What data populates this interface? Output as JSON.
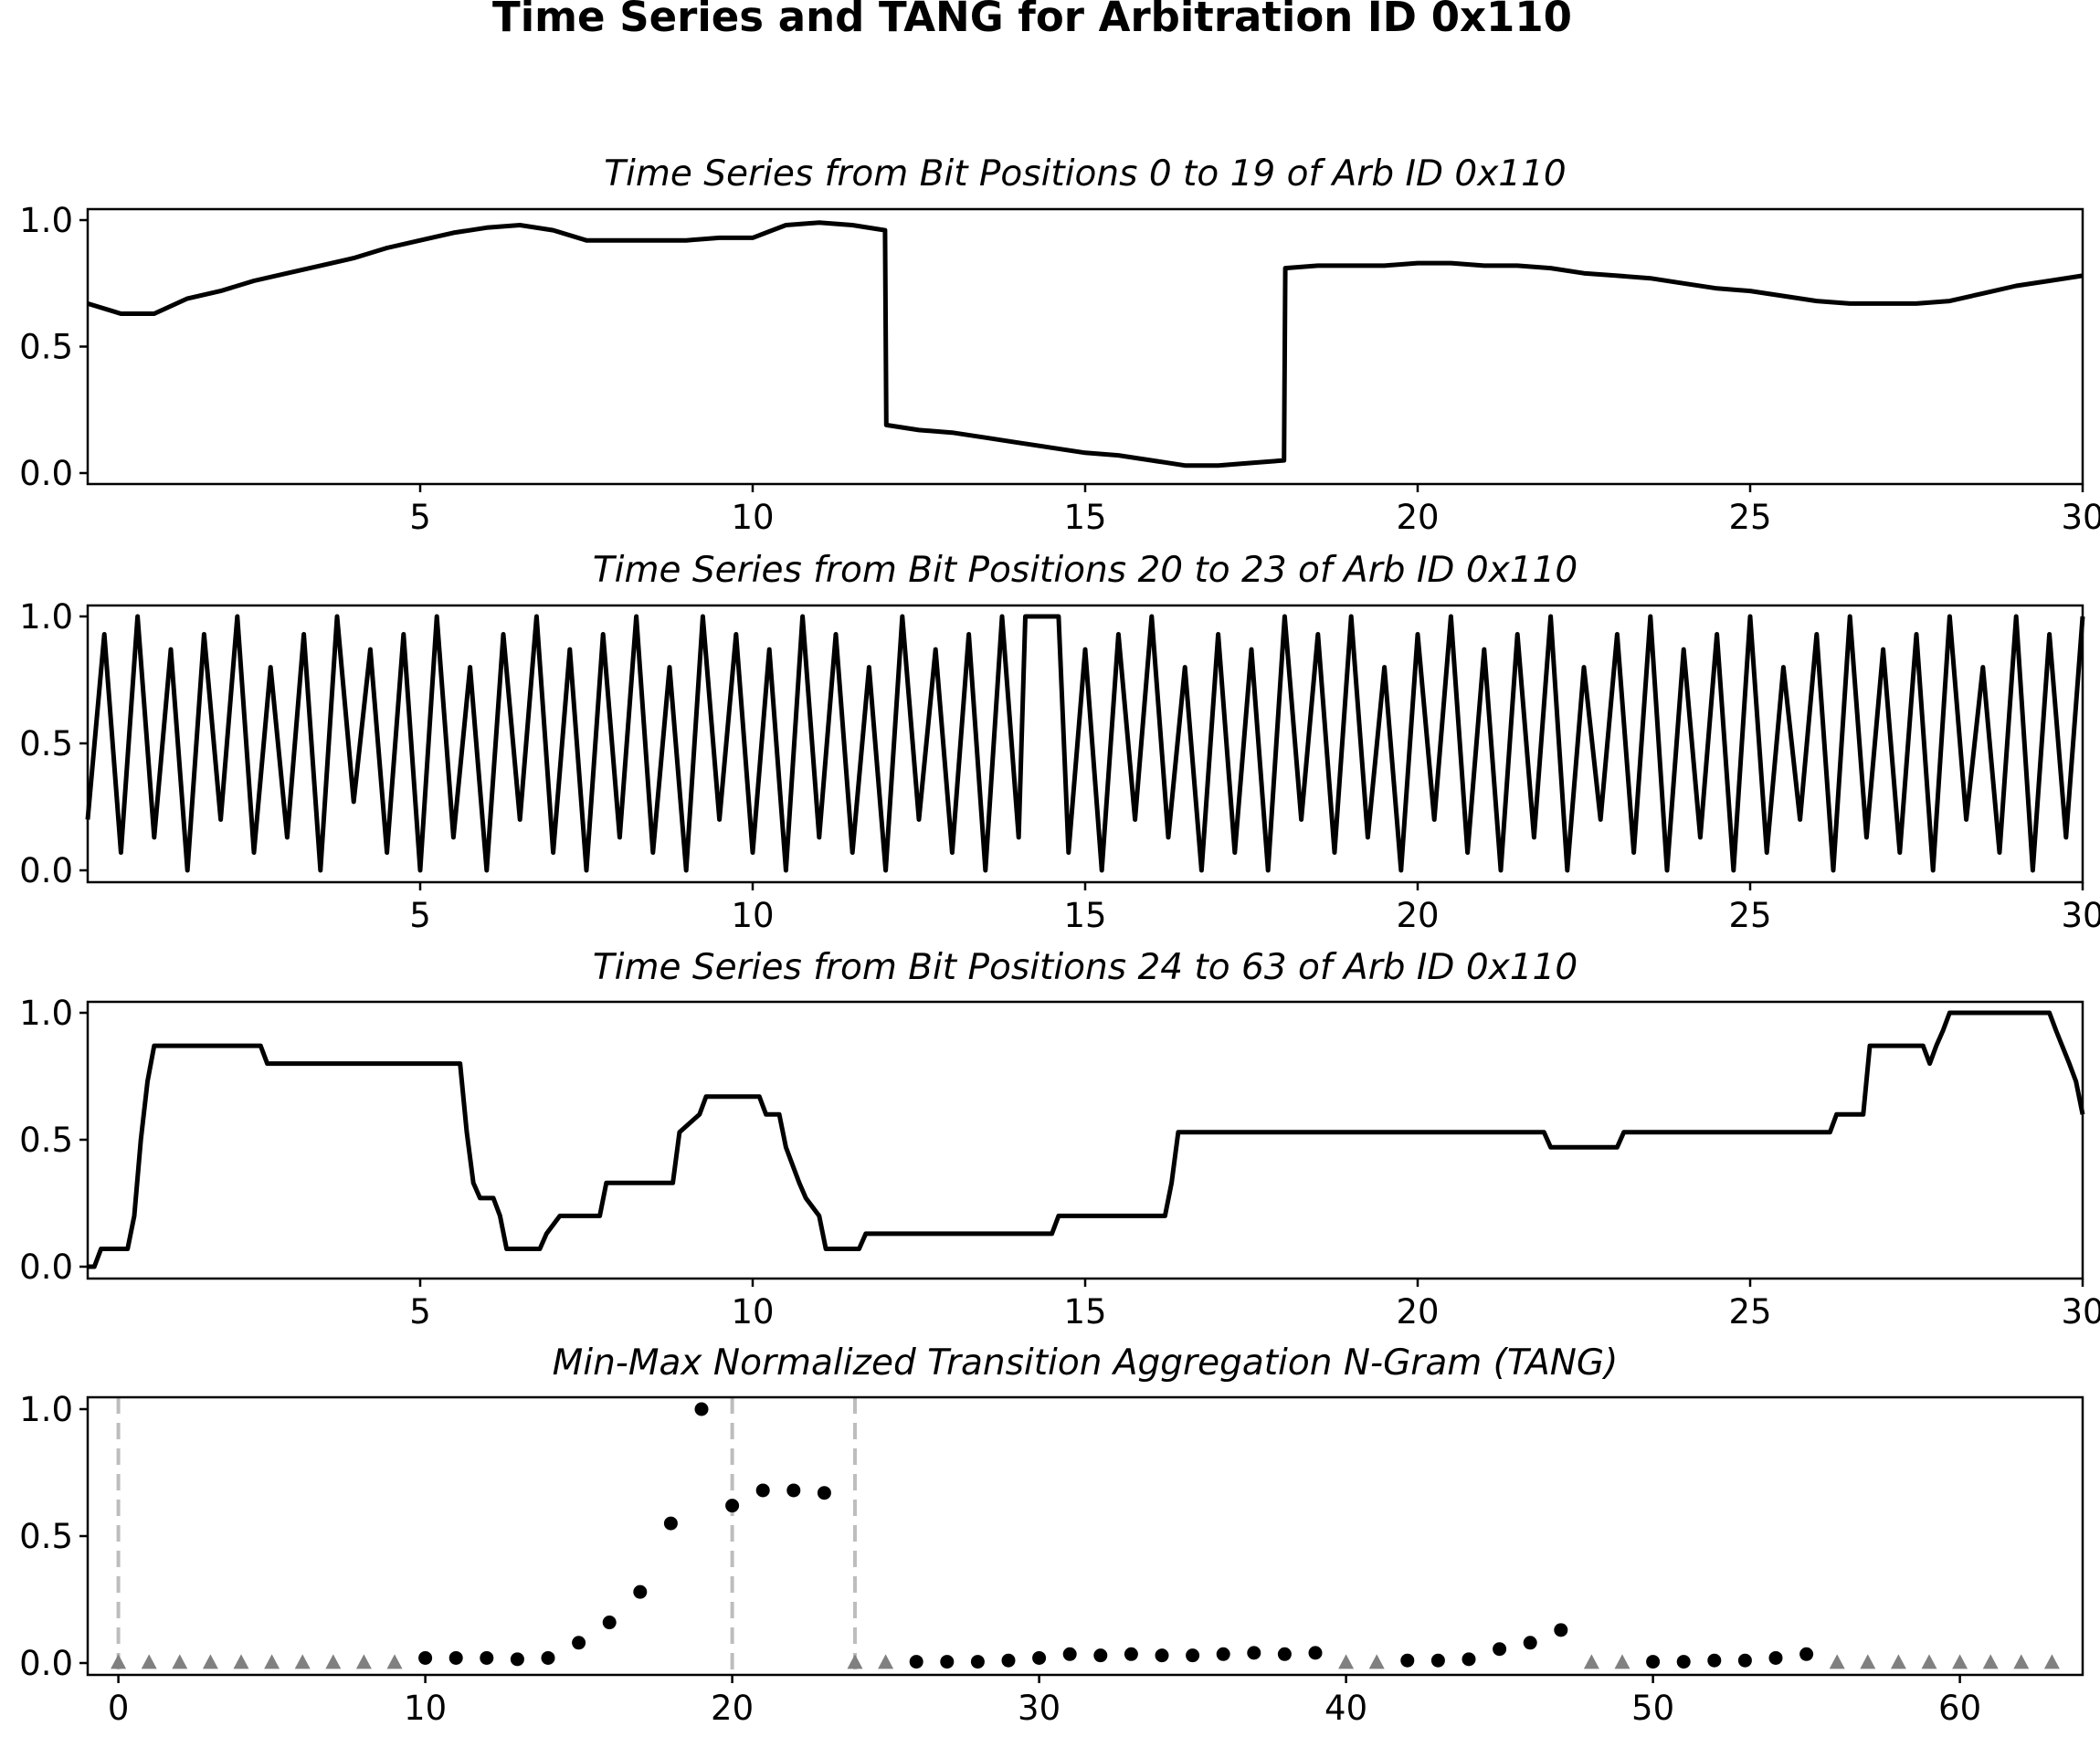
{
  "figure": {
    "title": "Time Series and TANG for Arbitration ID 0x110"
  },
  "chart_data": [
    {
      "type": "line",
      "title": "Time Series from Bit Positions 0 to 19 of Arb ID 0x110",
      "xlim": [
        0,
        30
      ],
      "ylim": [
        0,
        1
      ],
      "xticks": [
        5,
        10,
        15,
        20,
        25,
        30
      ],
      "yticks": [
        0.0,
        0.5,
        1.0
      ],
      "x": [
        0,
        0.5,
        1.0,
        1.5,
        2.0,
        2.5,
        3.0,
        3.5,
        4.0,
        4.5,
        5.0,
        5.5,
        6.0,
        6.5,
        7.0,
        7.5,
        8.0,
        8.5,
        9.0,
        9.5,
        10.0,
        10.5,
        11.0,
        11.5,
        11.99,
        12.01,
        12.5,
        13.0,
        13.5,
        14.0,
        14.5,
        15.0,
        15.5,
        16.0,
        16.5,
        17.0,
        17.5,
        17.99,
        18.01,
        18.5,
        19.0,
        19.5,
        20.0,
        20.5,
        21.0,
        21.5,
        22.0,
        22.5,
        23.0,
        23.5,
        24.0,
        24.5,
        25.0,
        25.5,
        26.0,
        26.5,
        27.0,
        27.5,
        28.0,
        28.5,
        29.0,
        29.5,
        30.0
      ],
      "y": [
        0.67,
        0.63,
        0.63,
        0.69,
        0.72,
        0.76,
        0.79,
        0.82,
        0.85,
        0.89,
        0.92,
        0.95,
        0.97,
        0.98,
        0.96,
        0.92,
        0.92,
        0.92,
        0.92,
        0.93,
        0.93,
        0.98,
        0.99,
        0.98,
        0.96,
        0.19,
        0.17,
        0.16,
        0.14,
        0.12,
        0.1,
        0.08,
        0.07,
        0.05,
        0.03,
        0.03,
        0.04,
        0.05,
        0.81,
        0.82,
        0.82,
        0.82,
        0.83,
        0.83,
        0.82,
        0.82,
        0.81,
        0.79,
        0.78,
        0.77,
        0.75,
        0.73,
        0.72,
        0.7,
        0.68,
        0.67,
        0.67,
        0.67,
        0.68,
        0.71,
        0.74,
        0.76,
        0.78
      ]
    },
    {
      "type": "line",
      "title": "Time Series from Bit Positions 20 to 23 of Arb ID 0x110",
      "xlim": [
        0,
        30
      ],
      "ylim": [
        0,
        1
      ],
      "xticks": [
        5,
        10,
        15,
        20,
        25,
        30
      ],
      "yticks": [
        0.0,
        0.5,
        1.0
      ],
      "x": [
        0,
        0.25,
        0.5,
        0.75,
        1.0,
        1.25,
        1.5,
        1.75,
        2.0,
        2.25,
        2.5,
        2.75,
        3.0,
        3.25,
        3.5,
        3.75,
        4.0,
        4.25,
        4.5,
        4.75,
        5.0,
        5.25,
        5.5,
        5.75,
        6.0,
        6.25,
        6.5,
        6.75,
        7.0,
        7.25,
        7.5,
        7.75,
        8.0,
        8.25,
        8.5,
        8.75,
        9.0,
        9.25,
        9.5,
        9.75,
        10.0,
        10.25,
        10.5,
        10.75,
        11.0,
        11.25,
        11.5,
        11.75,
        12.0,
        12.25,
        12.5,
        12.75,
        13.0,
        13.25,
        13.5,
        13.75,
        14.0,
        14.1,
        14.2,
        14.3,
        14.4,
        14.5,
        14.6,
        14.75,
        15.0,
        15.25,
        15.5,
        15.75,
        16.0,
        16.25,
        16.5,
        16.75,
        17.0,
        17.25,
        17.5,
        17.75,
        18.0,
        18.25,
        18.5,
        18.75,
        19.0,
        19.25,
        19.5,
        19.75,
        20.0,
        20.25,
        20.5,
        20.75,
        21.0,
        21.25,
        21.5,
        21.75,
        22.0,
        22.25,
        22.5,
        22.75,
        23.0,
        23.25,
        23.5,
        23.75,
        24.0,
        24.25,
        24.5,
        24.75,
        25.0,
        25.25,
        25.5,
        25.75,
        26.0,
        26.25,
        26.5,
        26.75,
        27.0,
        27.25,
        27.5,
        27.75,
        28.0,
        28.25,
        28.5,
        28.75,
        29.0,
        29.25,
        29.5,
        29.75,
        30.0
      ],
      "y": [
        0.2,
        0.93,
        0.07,
        1.0,
        0.13,
        0.87,
        0.0,
        0.93,
        0.2,
        1.0,
        0.07,
        0.8,
        0.13,
        0.93,
        0.0,
        1.0,
        0.27,
        0.87,
        0.07,
        0.93,
        0.0,
        1.0,
        0.13,
        0.8,
        0.0,
        0.93,
        0.2,
        1.0,
        0.07,
        0.87,
        0.0,
        0.93,
        0.13,
        1.0,
        0.07,
        0.8,
        0.0,
        1.0,
        0.2,
        0.93,
        0.07,
        0.87,
        0.0,
        1.0,
        0.13,
        0.93,
        0.07,
        0.8,
        0.0,
        1.0,
        0.2,
        0.87,
        0.07,
        0.93,
        0.0,
        1.0,
        0.13,
        1.0,
        1.0,
        1.0,
        1.0,
        1.0,
        1.0,
        0.07,
        0.87,
        0.0,
        0.93,
        0.2,
        1.0,
        0.13,
        0.8,
        0.0,
        0.93,
        0.07,
        0.87,
        0.0,
        1.0,
        0.2,
        0.93,
        0.07,
        1.0,
        0.13,
        0.8,
        0.0,
        0.93,
        0.2,
        1.0,
        0.07,
        0.87,
        0.0,
        0.93,
        0.13,
        1.0,
        0.0,
        0.8,
        0.2,
        0.93,
        0.07,
        1.0,
        0.0,
        0.87,
        0.13,
        0.93,
        0.0,
        1.0,
        0.07,
        0.8,
        0.2,
        0.93,
        0.0,
        1.0,
        0.13,
        0.87,
        0.07,
        0.93,
        0.0,
        1.0,
        0.2,
        0.8,
        0.07,
        1.0,
        0.0,
        0.93,
        0.13,
        1.0
      ]
    },
    {
      "type": "line",
      "title": "Time Series from Bit Positions 24 to 63 of Arb ID 0x110",
      "xlim": [
        0,
        30
      ],
      "ylim": [
        0,
        1
      ],
      "xticks": [
        5,
        10,
        15,
        20,
        25,
        30
      ],
      "yticks": [
        0.0,
        0.5,
        1.0
      ],
      "x": [
        0,
        0.1,
        0.2,
        0.6,
        0.7,
        0.8,
        0.9,
        1.0,
        2.6,
        2.7,
        5.6,
        5.7,
        5.8,
        5.9,
        6.1,
        6.2,
        6.3,
        6.8,
        6.9,
        7.1,
        7.7,
        7.8,
        8.8,
        8.9,
        9.2,
        9.3,
        10.1,
        10.2,
        10.4,
        10.5,
        10.7,
        10.8,
        11.0,
        11.1,
        11.6,
        11.7,
        14.5,
        14.6,
        16.2,
        16.3,
        16.4,
        21.9,
        22.0,
        23.0,
        23.1,
        26.2,
        26.3,
        26.7,
        26.8,
        27.6,
        27.7,
        27.8,
        27.9,
        28.0,
        29.5,
        29.6,
        29.8,
        29.9,
        30.0
      ],
      "y": [
        0.0,
        0.0,
        0.07,
        0.07,
        0.2,
        0.5,
        0.73,
        0.87,
        0.87,
        0.8,
        0.8,
        0.53,
        0.33,
        0.27,
        0.27,
        0.2,
        0.07,
        0.07,
        0.13,
        0.2,
        0.2,
        0.33,
        0.33,
        0.53,
        0.6,
        0.67,
        0.67,
        0.6,
        0.6,
        0.47,
        0.33,
        0.27,
        0.2,
        0.07,
        0.07,
        0.13,
        0.13,
        0.2,
        0.2,
        0.33,
        0.53,
        0.53,
        0.47,
        0.47,
        0.53,
        0.53,
        0.6,
        0.6,
        0.87,
        0.87,
        0.8,
        0.87,
        0.93,
        1.0,
        1.0,
        0.93,
        0.8,
        0.73,
        0.6
      ]
    },
    {
      "type": "scatter",
      "title": "Min-Max Normalized Transition Aggregation N-Gram (TANG)",
      "xlim": [
        -1,
        64
      ],
      "ylim": [
        0,
        1
      ],
      "xticks": [
        0,
        10,
        20,
        30,
        40,
        50,
        60
      ],
      "yticks": [
        0.0,
        0.5,
        1.0
      ],
      "vlines": [
        0,
        20,
        24
      ],
      "series": [
        {
          "marker": "circle",
          "color": "#000000",
          "x": [
            10,
            11,
            12,
            13,
            14,
            15,
            16,
            17,
            18,
            19,
            20,
            21,
            22,
            23,
            26,
            27,
            28,
            29,
            30,
            31,
            32,
            33,
            34,
            35,
            36,
            37,
            38,
            39,
            42,
            43,
            44,
            45,
            46,
            47,
            50,
            51,
            52,
            53,
            54,
            55
          ],
          "y": [
            0.02,
            0.02,
            0.02,
            0.015,
            0.02,
            0.08,
            0.16,
            0.28,
            0.55,
            1.0,
            0.62,
            0.68,
            0.68,
            0.67,
            0.005,
            0.005,
            0.005,
            0.01,
            0.02,
            0.035,
            0.03,
            0.035,
            0.03,
            0.03,
            0.035,
            0.04,
            0.035,
            0.04,
            0.01,
            0.01,
            0.015,
            0.055,
            0.08,
            0.13,
            0.005,
            0.005,
            0.01,
            0.01,
            0.02,
            0.035
          ]
        },
        {
          "marker": "triangle",
          "color": "#808080",
          "x": [
            0,
            1,
            2,
            3,
            4,
            5,
            6,
            7,
            8,
            9,
            24,
            25,
            40,
            41,
            48,
            49,
            56,
            57,
            58,
            59,
            60,
            61,
            62,
            63
          ],
          "y": [
            0,
            0,
            0,
            0,
            0,
            0,
            0,
            0,
            0,
            0,
            0,
            0,
            0,
            0,
            0,
            0,
            0,
            0,
            0,
            0,
            0,
            0,
            0,
            0
          ]
        }
      ]
    }
  ]
}
